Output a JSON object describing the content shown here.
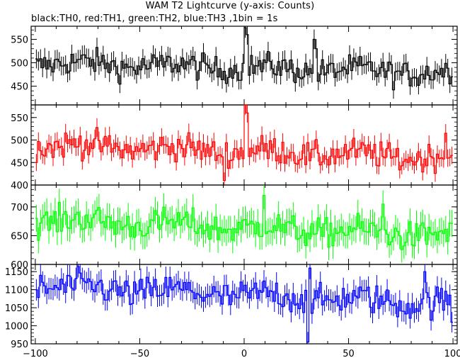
{
  "title": "WAM T2 Lightcurve (y-axis: Counts)",
  "subtitle": "black:TH0, red:TH1, green:TH2, blue:TH3 ,1bin = 1s",
  "chart_data": {
    "type": "line",
    "x_range": [
      -102,
      102
    ],
    "x_ticks": [
      -100,
      -50,
      0,
      50,
      100
    ],
    "bin_seconds": 1,
    "panels": [
      {
        "name": "TH0",
        "color": "#000000",
        "ylim": [
          410,
          578
        ],
        "yticks": [
          450,
          500,
          550
        ],
        "mean_start": 500,
        "mean_end": 478,
        "noise": 20,
        "spikes": [
          {
            "x": 0,
            "value": 575
          },
          {
            "x": 1,
            "value": 560
          },
          {
            "x": 33,
            "value": 550
          },
          {
            "x": 34,
            "value": 530
          }
        ]
      },
      {
        "name": "TH1",
        "color": "#ff0000",
        "ylim": [
          400,
          578
        ],
        "yticks": [
          400,
          450,
          500,
          550
        ],
        "mean_start": 490,
        "mean_end": 460,
        "noise": 22,
        "spikes": [
          {
            "x": 0,
            "value": 578
          },
          {
            "x": 1,
            "value": 560
          },
          {
            "x": 96,
            "value": 515
          },
          {
            "x": -10,
            "value": 410
          }
        ]
      },
      {
        "name": "TH2",
        "color": "#00ff00",
        "ylim": [
          600,
          738
        ],
        "yticks": [
          600,
          650,
          700
        ],
        "mean_start": 678,
        "mean_end": 650,
        "noise": 18,
        "spikes": [
          {
            "x": 9,
            "value": 720
          },
          {
            "x": 66,
            "value": 705
          }
        ]
      },
      {
        "name": "TH3",
        "color": "#0000ff",
        "ylim": [
          950,
          1170
        ],
        "yticks": [
          950,
          1000,
          1050,
          1100,
          1150
        ],
        "mean_start": 1110,
        "mean_end": 1060,
        "noise": 30,
        "spikes": [
          {
            "x": 30,
            "value": 955
          },
          {
            "x": 31,
            "value": 1160
          },
          {
            "x": 86,
            "value": 1150
          },
          {
            "x": 99,
            "value": 1010
          }
        ]
      }
    ]
  }
}
